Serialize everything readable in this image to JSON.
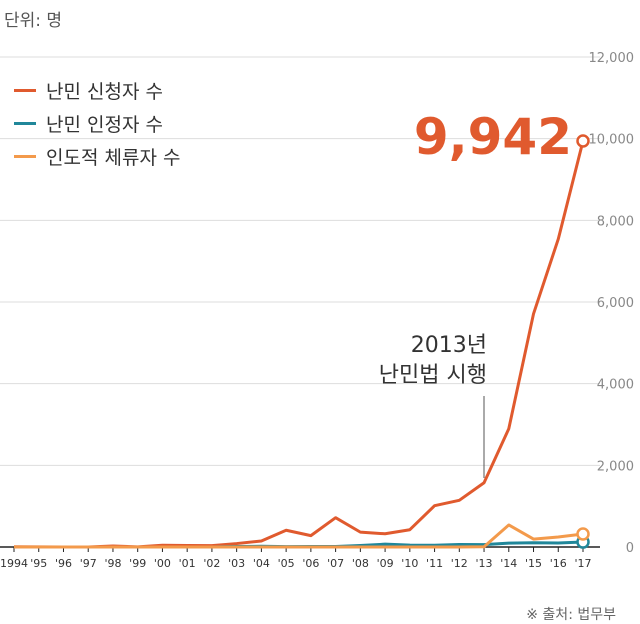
{
  "unit_label": "단위: 명",
  "source": "※ 출처: 법무부",
  "annotation": {
    "year": "2013년",
    "text": "난민법 시행"
  },
  "highlight_value": "9,942",
  "legend": [
    {
      "label": "난민 신청자 수",
      "color": "#e05a2e"
    },
    {
      "label": "난민 인정자 수",
      "color": "#20879a"
    },
    {
      "label": "인도적 체류자 수",
      "color": "#f39a4b"
    }
  ],
  "chart_data": {
    "type": "line",
    "categories": [
      "1994",
      "'95",
      "'96",
      "'97",
      "'98",
      "'99",
      "'00",
      "'01",
      "'02",
      "'03",
      "'04",
      "'05",
      "'06",
      "'07",
      "'08",
      "'09",
      "'10",
      "'11",
      "'12",
      "'13",
      "'14",
      "'15",
      "'16",
      "'17"
    ],
    "ylim": [
      0,
      12000
    ],
    "yticks": [
      "0",
      "2,000",
      "4,000",
      "6,000",
      "8,000",
      "10,000",
      "12,000"
    ],
    "grid": true,
    "legend_position": "top-left",
    "series": [
      {
        "name": "난민 신청자 수",
        "color": "#e05a2e",
        "values": [
          5,
          2,
          1,
          1,
          26,
          4,
          43,
          37,
          34,
          84,
          148,
          410,
          278,
          717,
          364,
          324,
          423,
          1011,
          1143,
          1574,
          2896,
          5711,
          7541,
          9942
        ]
      },
      {
        "name": "난민 인정자 수",
        "color": "#20879a",
        "values": [
          0,
          0,
          0,
          0,
          0,
          0,
          0,
          1,
          1,
          12,
          18,
          9,
          11,
          13,
          36,
          70,
          47,
          42,
          60,
          57,
          94,
          105,
          98,
          121
        ]
      },
      {
        "name": "인도적 체류자 수",
        "color": "#f39a4b",
        "values": [
          0,
          0,
          0,
          0,
          0,
          0,
          0,
          0,
          0,
          0,
          0,
          0,
          0,
          0,
          0,
          0,
          0,
          0,
          0,
          6,
          539,
          194,
          246,
          318
        ]
      }
    ]
  }
}
